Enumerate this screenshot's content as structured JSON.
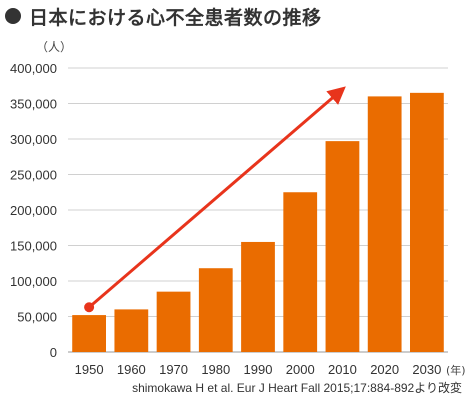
{
  "title": "日本における心不全患者数の推移",
  "chart_data": {
    "type": "bar",
    "title": "日本における心不全患者数の推移",
    "y_unit": "（人）",
    "x_unit": "(年)",
    "categories": [
      "1950",
      "1960",
      "1970",
      "1980",
      "1990",
      "2000",
      "2010",
      "2020",
      "2030"
    ],
    "values": [
      52000,
      60000,
      85000,
      118000,
      155000,
      225000,
      297000,
      360000,
      365000
    ],
    "ylim": [
      0,
      400000
    ],
    "yticks": [
      0,
      50000,
      100000,
      150000,
      200000,
      250000,
      300000,
      350000,
      400000
    ],
    "ytick_labels": [
      "0",
      "50,000",
      "100,000",
      "150,000",
      "200,000",
      "250,000",
      "300,000",
      "350,000",
      "400,000"
    ],
    "grid": true,
    "arrow": {
      "start": {
        "x": "1950",
        "y": 63000
      },
      "end": {
        "x": "2010",
        "y": 370000
      }
    },
    "bar_color": "#ea6c00",
    "arrow_color": "#e8341c",
    "grid_color": "#d0d0d0"
  },
  "source": "shimokawa H et al. Eur J Heart Fall 2015;17:884-892より改変"
}
